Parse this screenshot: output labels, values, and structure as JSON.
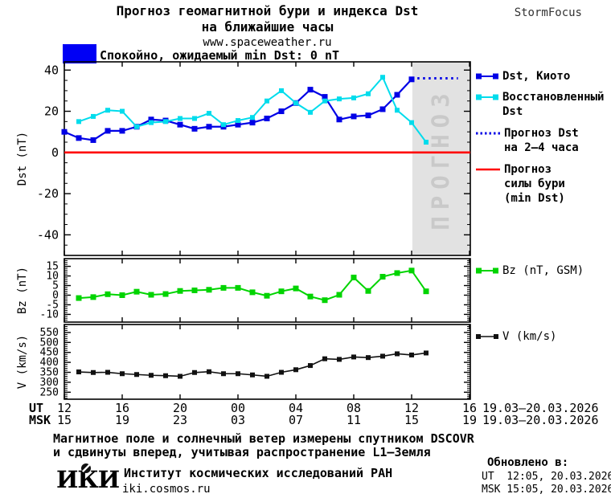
{
  "header": {
    "title_line1": "Прогноз геомагнитной бури и индекса Dst",
    "title_line2": "на ближайшие часы",
    "website": "www.spaceweather.ru",
    "brand": "StormFocus"
  },
  "status": {
    "label": "Спокойно, ожидаемый min Dst: 0 nT"
  },
  "colors": {
    "status_box": "#0000f5",
    "dst_kyoto": "#0000e6",
    "dst_restored": "#00dcec",
    "dst_forecast": "#0000e6",
    "storm_forecast": "#ff0000",
    "bz": "#00d400",
    "v": "#111111",
    "forecast_band": "#e2e2e2",
    "forecast_band_label": "#c9c9c9"
  },
  "legend": {
    "dst_kyoto": "Dst, Киото",
    "restored_line1": "Восстановленный",
    "restored_line2": "Dst",
    "forecast_line1": "Прогноз Dst",
    "forecast_line2": "на 2–4 часа",
    "storm_line1": "Прогноз",
    "storm_line2": "силы бури",
    "storm_line3": "(min Dst)",
    "bz": "Bz (nT, GSM)",
    "v": "V (km/s)"
  },
  "x_axis": {
    "ut_label": "UT",
    "msk_label": "MSK",
    "ut_ticks": [
      "12",
      "16",
      "20",
      "00",
      "04",
      "08",
      "12",
      "16"
    ],
    "msk_ticks": [
      "15",
      "19",
      "23",
      "03",
      "07",
      "11",
      "15",
      "19"
    ],
    "ut_date": "19.03–20.03.2026",
    "msk_date": "19.03–20.03.2026"
  },
  "footer": {
    "note_line1": "Магнитное поле и солнечный ветер измерены спутником DSCOVR",
    "note_line2": "и сдвинуты вперед, учитывая распространение L1–Земля",
    "updated_label": "Обновлено в:",
    "updated_ut": "UT  12:05, 20.03.2026",
    "updated_msk": "MSK 15:05, 20.03.2026",
    "logo_text": "ИКИ",
    "institute": "Институт космических исследований РАН",
    "site": "iki.cosmos.ru"
  },
  "chart_data": [
    {
      "id": "dst",
      "type": "line",
      "ylabel": "Dst (nT)",
      "ylim": [
        -50,
        44
      ],
      "yticks": [
        40,
        20,
        0,
        -20,
        -40
      ],
      "y_minor_step": 5,
      "x_hours_range": [
        0,
        28
      ],
      "x_major_step_hours": 4,
      "forecast_band": {
        "from_hour": 24.05,
        "to_hour": 28,
        "label": "ПРОГНОЗ"
      },
      "series": [
        {
          "name": "Dst, Киото",
          "data_name": "dst-kyoto-series",
          "color_key": "dst_kyoto",
          "marker_size": 7,
          "width": 2.2,
          "x_start_hour": 0,
          "values": [
            10,
            7,
            6,
            10.5,
            10.5,
            12.5,
            16,
            15.5,
            13.5,
            11.5,
            12.5,
            12.5,
            13.5,
            14.5,
            16.5,
            20,
            24,
            30.5,
            27,
            16,
            17.5,
            18,
            21,
            28,
            35.5
          ]
        },
        {
          "name": "Восстановленный Dst",
          "data_name": "dst-restored-series",
          "color_key": "dst_restored",
          "marker_size": 6,
          "width": 2,
          "x_start_hour": 1,
          "values": [
            15,
            17.5,
            20.5,
            20,
            12.5,
            14.5,
            15,
            16.5,
            16.5,
            19,
            13.5,
            15.5,
            17,
            25,
            30,
            24,
            19.5,
            25,
            26,
            26.5,
            28.5,
            36.5,
            20.5,
            14.5,
            5
          ]
        },
        {
          "name": "Прогноз Dst на 2–4 часа",
          "data_name": "dst-forecast-series",
          "color_key": "dst_forecast",
          "style": "dotted",
          "x_hours": [
            24.4,
            27.2
          ],
          "values": [
            36,
            36
          ]
        },
        {
          "name": "Прогноз силы бури (min Dst)",
          "data_name": "storm-forecast-line",
          "color_key": "storm_forecast",
          "style": "hline",
          "value": 0
        }
      ]
    },
    {
      "id": "bz",
      "type": "line",
      "ylabel": "Bz (nT)",
      "ylim": [
        -14,
        19
      ],
      "yticks": [
        15,
        10,
        5,
        0,
        -5,
        -10
      ],
      "y_minor_step": 1,
      "x_hours_range": [
        0,
        28
      ],
      "x_major_step_hours": 4,
      "series": [
        {
          "name": "Bz (nT, GSM)",
          "data_name": "bz-series",
          "color_key": "bz",
          "marker_size": 7,
          "width": 2,
          "x_start_hour": 1,
          "values": [
            -1.5,
            -1,
            0.5,
            0,
            1.8,
            0.2,
            0.6,
            2.2,
            2.5,
            2.8,
            3.8,
            3.8,
            1.5,
            -0.3,
            2,
            3.5,
            -0.7,
            -2.6,
            0.2,
            9.2,
            2.2,
            9.6,
            11.5,
            12.8,
            2
          ]
        }
      ]
    },
    {
      "id": "v",
      "type": "line",
      "ylabel": "V (km/s)",
      "ylim": [
        215,
        590
      ],
      "yticks": [
        550,
        500,
        450,
        400,
        350,
        300,
        250
      ],
      "y_minor_step": 10,
      "x_hours_range": [
        0,
        28
      ],
      "x_major_step_hours": 4,
      "series": [
        {
          "name": "V (km/s)",
          "data_name": "v-series",
          "color_key": "v",
          "marker_size": 6,
          "width": 1.6,
          "x_start_hour": 1,
          "values": [
            352,
            349,
            350,
            343,
            339,
            335,
            333,
            330,
            349,
            353,
            343,
            343,
            337,
            330,
            350,
            363,
            384,
            418,
            415,
            427,
            424,
            431,
            443,
            437,
            447
          ]
        }
      ]
    }
  ]
}
